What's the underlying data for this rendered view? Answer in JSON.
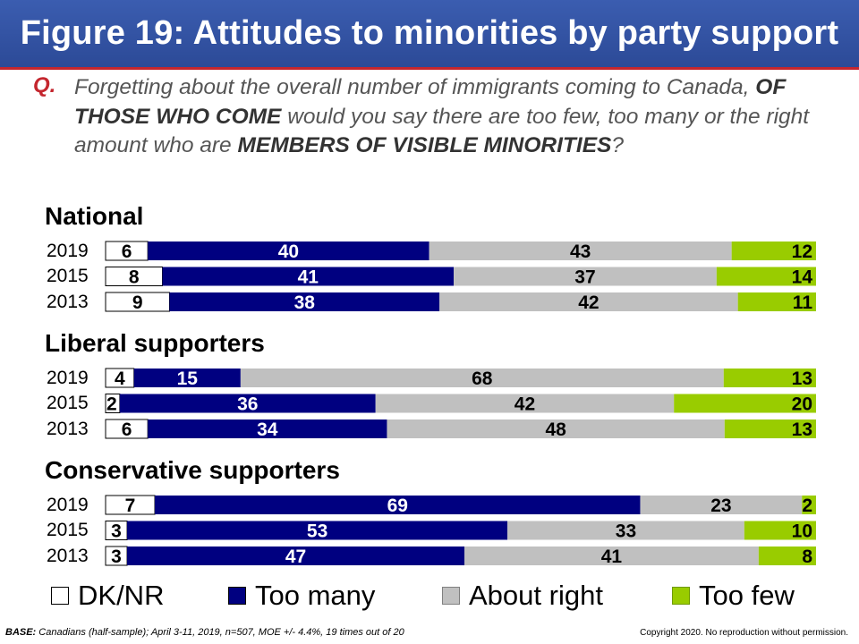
{
  "title": "Figure 19: Attitudes to minorities by party support",
  "question": {
    "label": "Q.",
    "parts": [
      {
        "text": "Forgetting about the overall number of immigrants coming to Canada, ",
        "bold": false
      },
      {
        "text": "OF THOSE WHO COME",
        "bold": true
      },
      {
        "text": " would you say there are too few, too many or the right amount who are ",
        "bold": false
      },
      {
        "text": "MEMBERS OF VISIBLE MINORITIES",
        "bold": true
      },
      {
        "text": "?",
        "bold": false
      }
    ]
  },
  "legend": {
    "dk": "DK/NR",
    "too_many": "Too many",
    "about_right": "About right",
    "too_few": "Too few"
  },
  "colors": {
    "dk": "#ffffff",
    "too_many": "#000080",
    "about_right": "#c0c0c0",
    "too_few": "#99cc00",
    "header": "#2f4f9f",
    "accent": "#c4262e"
  },
  "footer": {
    "base_label": "BASE:",
    "base_text": "Canadians (half-sample);  April 3-11, 2019, n=507, MOE +/- 4.4%, 19 times out of 20",
    "copyright": "Copyright 2020. No reproduction without permission."
  },
  "chart_data": {
    "type": "bar",
    "orientation": "horizontal",
    "stacked": true,
    "series_order": [
      "DK/NR",
      "Too many",
      "About right",
      "Too few"
    ],
    "groups": [
      {
        "name": "National",
        "rows": [
          {
            "year": "2019",
            "values": [
              6,
              40,
              43,
              12
            ]
          },
          {
            "year": "2015",
            "values": [
              8,
              41,
              37,
              14
            ]
          },
          {
            "year": "2013",
            "values": [
              9,
              38,
              42,
              11
            ]
          }
        ]
      },
      {
        "name": "Liberal supporters",
        "rows": [
          {
            "year": "2019",
            "values": [
              4,
              15,
              68,
              13
            ]
          },
          {
            "year": "2015",
            "values": [
              2,
              36,
              42,
              20
            ]
          },
          {
            "year": "2013",
            "values": [
              6,
              34,
              48,
              13
            ]
          }
        ]
      },
      {
        "name": "Conservative supporters",
        "rows": [
          {
            "year": "2019",
            "values": [
              7,
              69,
              23,
              2
            ]
          },
          {
            "year": "2015",
            "values": [
              3,
              53,
              33,
              10
            ]
          },
          {
            "year": "2013",
            "values": [
              3,
              47,
              41,
              8
            ]
          }
        ]
      }
    ]
  }
}
